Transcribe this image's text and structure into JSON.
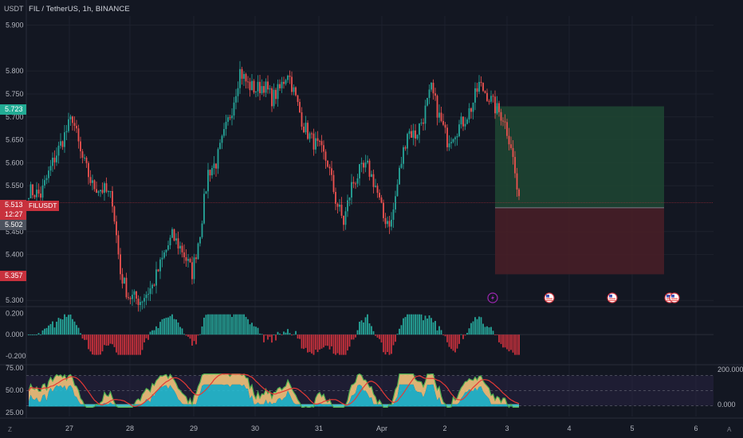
{
  "header": {
    "currency": "USDT",
    "title": "FIL / TetherUS, 1h, BINANCE"
  },
  "price_axis": {
    "ticks": [
      "5.900",
      "5.800",
      "5.750",
      "5.700",
      "5.650",
      "5.600",
      "5.550",
      "5.450",
      "5.400",
      "5.300"
    ],
    "target_tag": "5.723",
    "last_price_tag": "5.513",
    "countdown_tag": "12:27",
    "entry_tag": "5.502",
    "stop_tag": "5.357",
    "symbol_tag": "FILUSDT"
  },
  "macd_axis": {
    "ticks": [
      "0.200",
      "0.000",
      "-0.200"
    ]
  },
  "rsi_axis": {
    "left_ticks": [
      "75.00",
      "50.00",
      "25.00"
    ],
    "right_ticks": [
      "200.000",
      "0.000"
    ]
  },
  "time_axis": {
    "labels": [
      "27",
      "28",
      "29",
      "30",
      "31",
      "Apr",
      "2",
      "3",
      "4",
      "5",
      "6"
    ]
  },
  "corner_buttons": {
    "z": "Z",
    "a": "A"
  },
  "colors": {
    "background": "#131722",
    "up": "#26a69a",
    "down": "#ef5350",
    "target_zone": "#1f4632",
    "stop_zone": "#4a1f27",
    "macd_up": "#26a69a",
    "macd_down": "#c8313d"
  },
  "events": {
    "icons": [
      "flash-icon",
      "us-flag-icon",
      "us-flag-icon",
      "us-flag-icon",
      "us-flag-icon"
    ]
  },
  "chart_data": {
    "type": "candlestick",
    "symbol": "FIL / TetherUS",
    "interval": "1h",
    "exchange": "BINANCE",
    "ylim": [
      5.29,
      5.92
    ],
    "waypoints": [
      [
        0,
        5.54
      ],
      [
        6,
        5.53
      ],
      [
        12,
        5.6
      ],
      [
        18,
        5.66
      ],
      [
        22,
        5.7
      ],
      [
        26,
        5.62
      ],
      [
        32,
        5.55
      ],
      [
        38,
        5.54
      ],
      [
        42,
        5.52
      ],
      [
        46,
        5.36
      ],
      [
        50,
        5.31
      ],
      [
        56,
        5.3
      ],
      [
        62,
        5.33
      ],
      [
        68,
        5.4
      ],
      [
        72,
        5.44
      ],
      [
        77,
        5.41
      ],
      [
        82,
        5.36
      ],
      [
        86,
        5.45
      ],
      [
        90,
        5.58
      ],
      [
        94,
        5.6
      ],
      [
        98,
        5.66
      ],
      [
        102,
        5.72
      ],
      [
        106,
        5.8
      ],
      [
        110,
        5.77
      ],
      [
        114,
        5.76
      ],
      [
        118,
        5.77
      ],
      [
        122,
        5.74
      ],
      [
        126,
        5.76
      ],
      [
        130,
        5.8
      ],
      [
        134,
        5.74
      ],
      [
        138,
        5.68
      ],
      [
        142,
        5.65
      ],
      [
        146,
        5.63
      ],
      [
        150,
        5.6
      ],
      [
        154,
        5.52
      ],
      [
        158,
        5.47
      ],
      [
        162,
        5.55
      ],
      [
        166,
        5.58
      ],
      [
        170,
        5.59
      ],
      [
        174,
        5.55
      ],
      [
        178,
        5.48
      ],
      [
        182,
        5.47
      ],
      [
        186,
        5.58
      ],
      [
        190,
        5.67
      ],
      [
        194,
        5.66
      ],
      [
        198,
        5.7
      ],
      [
        202,
        5.76
      ],
      [
        206,
        5.7
      ],
      [
        210,
        5.65
      ],
      [
        214,
        5.67
      ],
      [
        218,
        5.69
      ],
      [
        222,
        5.72
      ],
      [
        226,
        5.77
      ],
      [
        230,
        5.75
      ],
      [
        234,
        5.72
      ],
      [
        238,
        5.7
      ],
      [
        242,
        5.64
      ],
      [
        246,
        5.51
      ]
    ],
    "risk_reward": {
      "target": 5.723,
      "entry": 5.502,
      "stop": 5.357
    },
    "last_price": 5.513
  }
}
